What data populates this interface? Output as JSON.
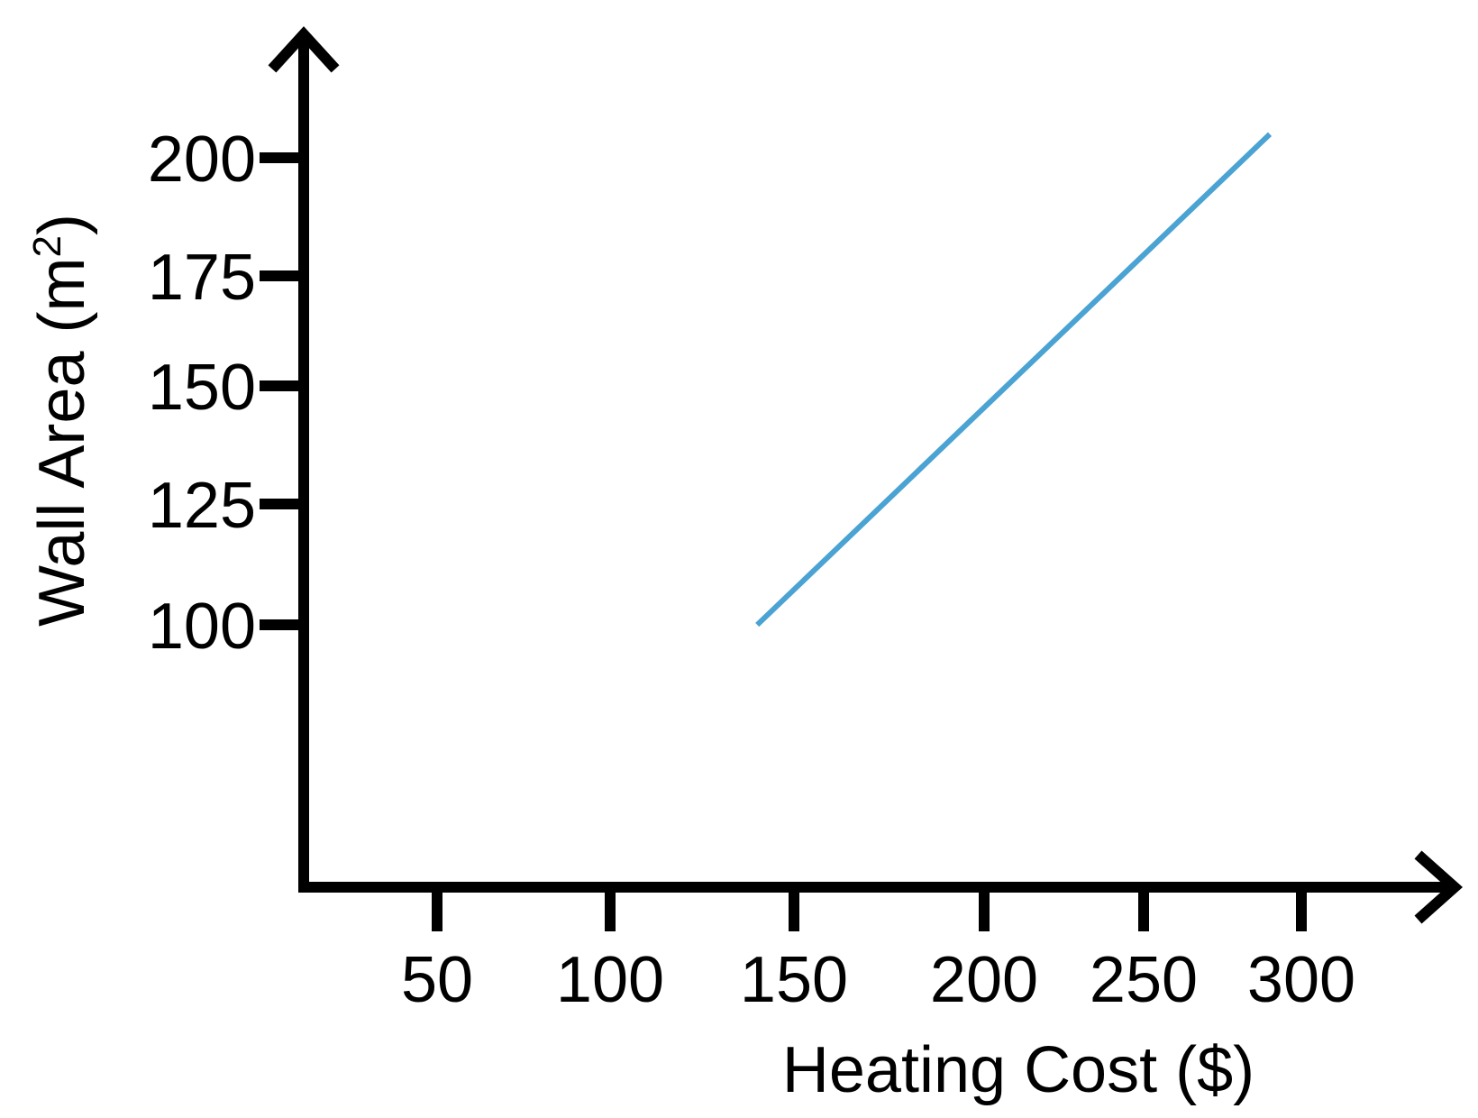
{
  "chart_data": {
    "type": "line",
    "xlabel": "Heating Cost ($)",
    "ylabel_main": "Wall Area (m",
    "ylabel_sup": "2",
    "ylabel_close": ")",
    "x_ticks": [
      50,
      100,
      150,
      200,
      250,
      300
    ],
    "y_ticks": [
      100,
      125,
      150,
      175,
      200
    ],
    "series": [
      {
        "x": [
          140,
          290
        ],
        "y": [
          100,
          205
        ],
        "color": "#4aa3d3"
      }
    ]
  }
}
